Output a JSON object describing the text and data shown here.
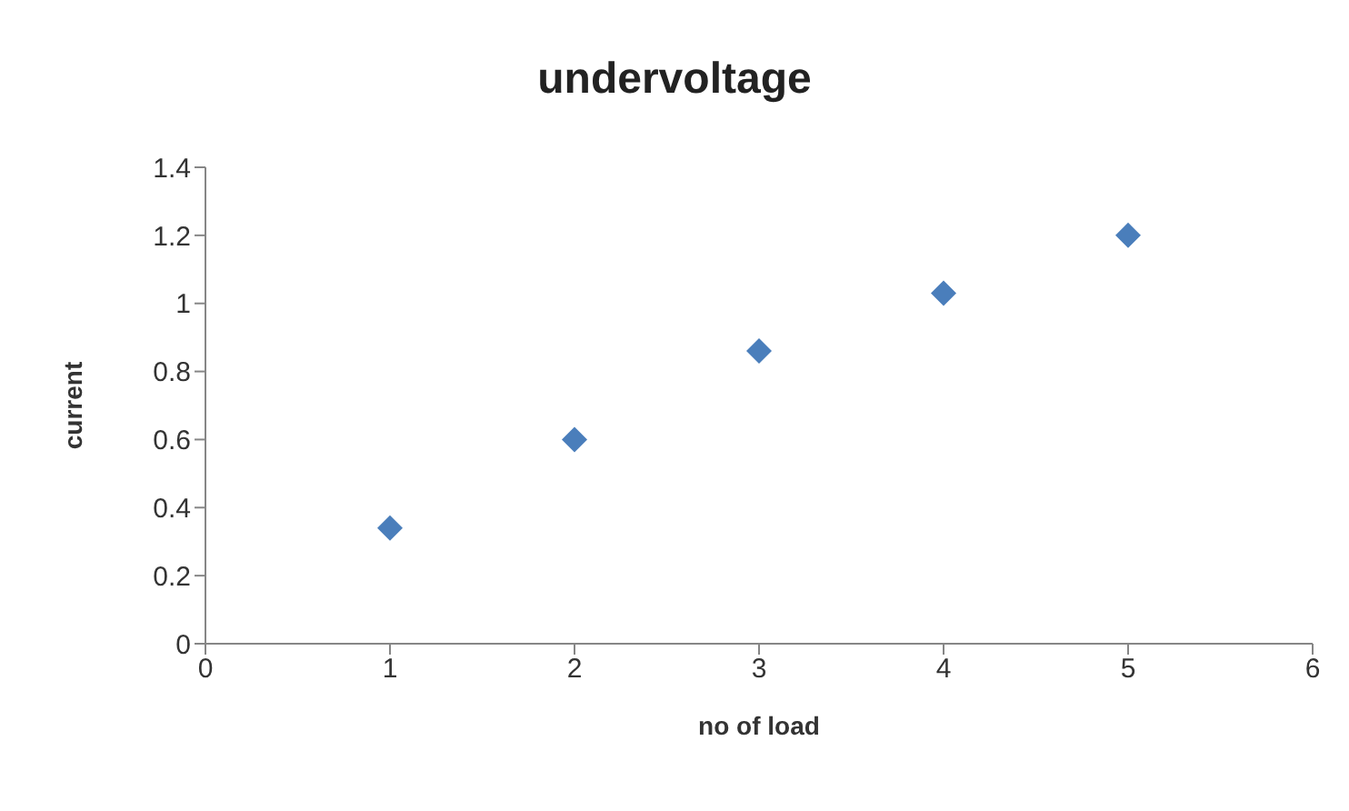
{
  "chart_data": {
    "type": "scatter",
    "title": "undervoltage",
    "xlabel": "no of load",
    "ylabel": "current",
    "x": [
      1,
      2,
      3,
      4,
      5
    ],
    "series": [
      {
        "color": "#4a7ebb",
        "values": [
          0.34,
          0.6,
          0.86,
          1.03,
          1.2
        ]
      }
    ],
    "xlim": [
      0,
      6
    ],
    "xticks": [
      0,
      1,
      2,
      3,
      4,
      5,
      6
    ],
    "ylim": [
      0,
      1.4
    ],
    "yticks": [
      0,
      0.2,
      0.4,
      0.6,
      0.8,
      1,
      1.2,
      1.4
    ],
    "marker": "diamond",
    "grid": false,
    "legend": false
  }
}
